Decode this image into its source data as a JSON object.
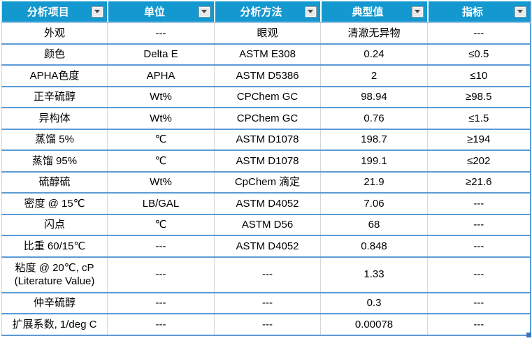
{
  "table": {
    "columns": [
      {
        "label": "分析项目"
      },
      {
        "label": "单位"
      },
      {
        "label": "分析方法"
      },
      {
        "label": "典型值"
      },
      {
        "label": "指标"
      }
    ],
    "rows": [
      [
        "外观",
        "---",
        "眼观",
        "清澈无异物",
        "---"
      ],
      [
        "颜色",
        "Delta E",
        "ASTM E308",
        "0.24",
        "≤0.5"
      ],
      [
        "APHA色度",
        "APHA",
        "ASTM D5386",
        "2",
        "≤10"
      ],
      [
        "正辛硫醇",
        "Wt%",
        "CPChem GC",
        "98.94",
        "≥98.5"
      ],
      [
        "异构体",
        "Wt%",
        "CPChem GC",
        "0.76",
        "≤1.5"
      ],
      [
        "蒸馏 5%",
        "℃",
        "ASTM D1078",
        "198.7",
        "≥194"
      ],
      [
        "蒸馏 95%",
        "℃",
        "ASTM D1078",
        "199.1",
        "≤202"
      ],
      [
        "硫醇硫",
        "Wt%",
        "CpChem 滴定",
        "21.9",
        "≥21.6"
      ],
      [
        "密度 @ 15℃",
        "LB/GAL",
        "ASTM D4052",
        "7.06",
        "---"
      ],
      [
        "闪点",
        "℃",
        "ASTM D56",
        "68",
        "---"
      ],
      [
        "比重 60/15℃",
        "---",
        "ASTM D4052",
        "0.848",
        "---"
      ],
      [
        "粘度 @ 20℃, cP (Literature Value)",
        "---",
        "---",
        "1.33",
        "---"
      ],
      [
        "仲辛硫醇",
        "---",
        "---",
        "0.3",
        "---"
      ],
      [
        "扩展系数, 1/deg C",
        "---",
        "---",
        "0.00078",
        "---"
      ]
    ],
    "icons": {
      "filter_button": "chevron-down-icon"
    }
  },
  "colors": {
    "header_bg": "#1498D0",
    "header_text": "#FFFFFF",
    "row_border": "#5B9BD5",
    "header_divider": "#9DC3E6",
    "col_border": "#D6D6D6",
    "handle": "#3A76BC",
    "cell_text": "#000000"
  }
}
